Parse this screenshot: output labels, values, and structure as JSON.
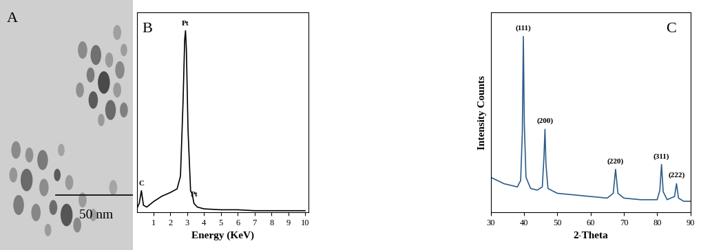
{
  "chart_data": [
    {
      "type": "image",
      "title": "A",
      "annotations": [
        {
          "text": "50 nm"
        }
      ]
    },
    {
      "type": "line",
      "title": "B",
      "x_label": "Energy (KeV)",
      "color": "#000000",
      "x": [
        0,
        0.15,
        0.28,
        0.4,
        0.6,
        1.0,
        1.5,
        2.0,
        2.4,
        2.6,
        2.75,
        2.85,
        2.9,
        2.95,
        3.05,
        3.2,
        3.3,
        3.4,
        3.6,
        4,
        5,
        6,
        7,
        8,
        9,
        10
      ],
      "values": [
        2,
        5,
        12,
        4,
        3,
        6,
        9,
        11,
        13,
        20,
        60,
        95,
        100,
        90,
        45,
        12,
        10,
        5,
        3,
        2,
        1.5,
        1.5,
        1,
        1,
        1,
        1
      ],
      "xlim": [
        0,
        10.2
      ],
      "xticks": [
        1,
        2,
        3,
        4,
        5,
        6,
        7,
        8,
        9,
        10
      ],
      "ylim": [
        0,
        110
      ],
      "yticks": [],
      "tick_labels": "x",
      "annotations": [
        {
          "text": "C",
          "x": 0.28,
          "y": 14
        },
        {
          "text": "Pt",
          "x": 2.9,
          "y": 102
        },
        {
          "text": "Pt",
          "x": 3.4,
          "y": 8
        }
      ]
    },
    {
      "type": "line",
      "title": "C",
      "x_label": "2-Theta",
      "y_label": "Intensity Counts",
      "color": "#2e5c8a",
      "x": [
        30,
        32,
        34,
        36,
        38,
        39,
        39.5,
        39.8,
        40.1,
        40.6,
        42,
        44,
        45.5,
        46,
        46.3,
        46.6,
        47.2,
        50,
        55,
        60,
        65,
        66.8,
        67.5,
        68.2,
        70,
        75,
        80,
        80.8,
        81.3,
        81.8,
        83,
        85.2,
        85.8,
        86.4,
        88,
        90
      ],
      "values": [
        22,
        20,
        18,
        17,
        16,
        20,
        50,
        110,
        55,
        22,
        15,
        14,
        16,
        35,
        52,
        30,
        15,
        12,
        11,
        10,
        9,
        12,
        27,
        12,
        9,
        8,
        8,
        14,
        30,
        13,
        8,
        10,
        18,
        9,
        7,
        7
      ],
      "xlim": [
        30,
        90
      ],
      "xticks": [
        30,
        40,
        50,
        60,
        70,
        80,
        90
      ],
      "ylim": [
        0,
        125
      ],
      "yticks": [],
      "tick_labels": "x",
      "annotations": [
        {
          "text": "(111)",
          "x": 39.8,
          "y": 113
        },
        {
          "text": "(200)",
          "x": 46.3,
          "y": 55
        },
        {
          "text": "(220)",
          "x": 67.5,
          "y": 30
        },
        {
          "text": "(311)",
          "x": 81.3,
          "y": 33
        },
        {
          "text": "(222)",
          "x": 85.8,
          "y": 21
        }
      ]
    }
  ]
}
